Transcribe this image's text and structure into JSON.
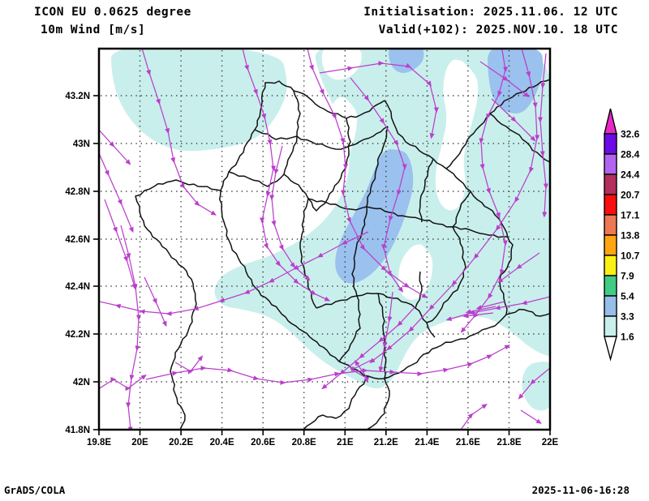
{
  "header": {
    "model_line": "ICON EU 0.0625 degree",
    "field_line": "10m Wind [m/s]",
    "init_line": "Initialisation: 2025.11.06. 12 UTC",
    "valid_line": "Valid(+102): 2025.NOV.10. 18 UTC"
  },
  "footer": {
    "left": "GrADS/COLA",
    "right": "2025-11-06-16:28"
  },
  "axes": {
    "lat_ticks": [
      "43.2N",
      "43N",
      "42.8N",
      "42.6N",
      "42.4N",
      "42.2N",
      "42N",
      "41.8N"
    ],
    "lon_ticks": [
      "19.8E",
      "20E",
      "20.2E",
      "20.4E",
      "20.6E",
      "20.8E",
      "21E",
      "21.2E",
      "21.4E",
      "21.6E",
      "21.8E",
      "22E"
    ]
  },
  "legend": {
    "labels": [
      "32.6",
      "28.4",
      "24.4",
      "20.7",
      "17.1",
      "13.8",
      "10.7",
      "7.9",
      "5.4",
      "3.3",
      "1.6"
    ],
    "band_colors": [
      "#6B0BE8",
      "#B164F0",
      "#B42E5E",
      "#FA0F0F",
      "#ED7852",
      "#FFA513",
      "#FBF013",
      "#41CC85",
      "#95BEEA",
      "#C9EFEC"
    ],
    "arrow_top_color": "#E827C9",
    "arrow_bottom_color": "#FFFFFF"
  },
  "map_colors": {
    "shade_light": "#C9EFEC",
    "shade_medium": "#9BC1EE",
    "streamline": "#BB3ECC",
    "border": "#121212",
    "grid": "#2a2a2a"
  },
  "chart_data": {
    "type": "heatmap",
    "title": "10m Wind [m/s]",
    "model": "ICON EU 0.0625 degree",
    "initialisation": "2025.11.06. 12 UTC",
    "valid": "(+102) 2025.NOV.10. 18 UTC",
    "xlabel": "longitude",
    "ylabel": "latitude",
    "x_ticks": [
      "19.8E",
      "20E",
      "20.2E",
      "20.4E",
      "20.6E",
      "20.8E",
      "21E",
      "21.2E",
      "21.4E",
      "21.6E",
      "21.8E",
      "22E"
    ],
    "y_ticks": [
      "43.2N",
      "43N",
      "42.8N",
      "42.6N",
      "42.4N",
      "42.2N",
      "42N",
      "41.8N"
    ],
    "xlim_deg_e": [
      19.8,
      22.0
    ],
    "ylim_labeled_deg_n": [
      41.8,
      43.2
    ],
    "speed_levels_m_s": [
      1.6,
      3.3,
      5.4,
      7.9,
      10.7,
      13.8,
      17.1,
      20.7,
      24.4,
      28.4,
      32.6
    ],
    "level_colors": [
      "#C9EFEC",
      "#95BEEA",
      "#41CC85",
      "#FBF013",
      "#FFA513",
      "#ED7852",
      "#FA0F0F",
      "#B42E5E",
      "#B164F0",
      "#6B0BE8"
    ],
    "legend_position": "right",
    "grid": "dotted lat-lon grid every 0.2 degree",
    "regions": [
      {
        "speed_band_m_s": "< 1.6",
        "color": "white",
        "where": "southwest quadrant, southern strip, sinuous gap in upper middle, pocket near centre-east"
      },
      {
        "speed_band_m_s": "1.6 - 3.3",
        "color": "#C9EFEC",
        "where": "most of the northern, central and eastern map area plus small blob at bottom right"
      },
      {
        "speed_band_m_s": "3.3 - 5.4",
        "color": "#9BC1EE",
        "where": "elongated patch over central-east Kosovo, small blob top centre, blob at top right edge"
      }
    ],
    "overlay": "magenta wind streamlines with arrowheads (northerly flow in the north and east, weak chaotic westerly-pointing flow in the south); black national and municipal borders of the Kosovo region"
  }
}
